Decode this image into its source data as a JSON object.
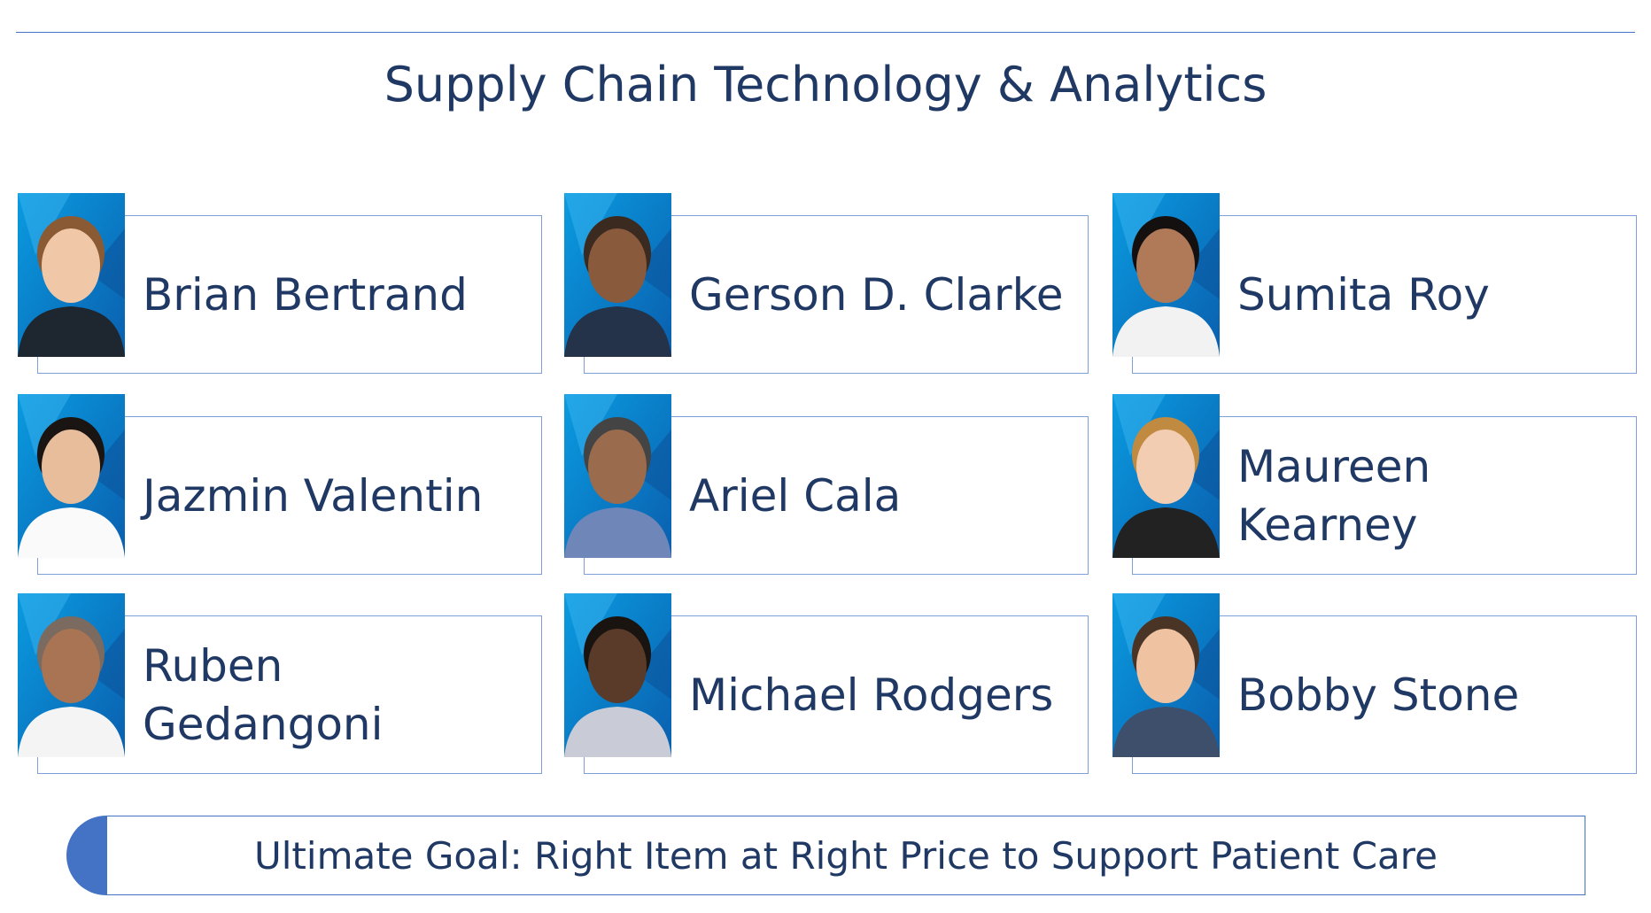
{
  "header": {
    "title": "Supply Chain Technology & Analytics"
  },
  "people": [
    {
      "name": "Brian Bertrand"
    },
    {
      "name": "Gerson D. Clarke"
    },
    {
      "name": "Sumita Roy"
    },
    {
      "name": "Jazmin Valentin"
    },
    {
      "name": "Ariel Cala"
    },
    {
      "name": "Maureen Kearney"
    },
    {
      "name": "Ruben Gedangoni"
    },
    {
      "name": "Michael Rodgers"
    },
    {
      "name": "Bobby Stone"
    }
  ],
  "footer": {
    "goal": "Ultimate Goal: Right Item at Right Price to Support Patient Care"
  }
}
